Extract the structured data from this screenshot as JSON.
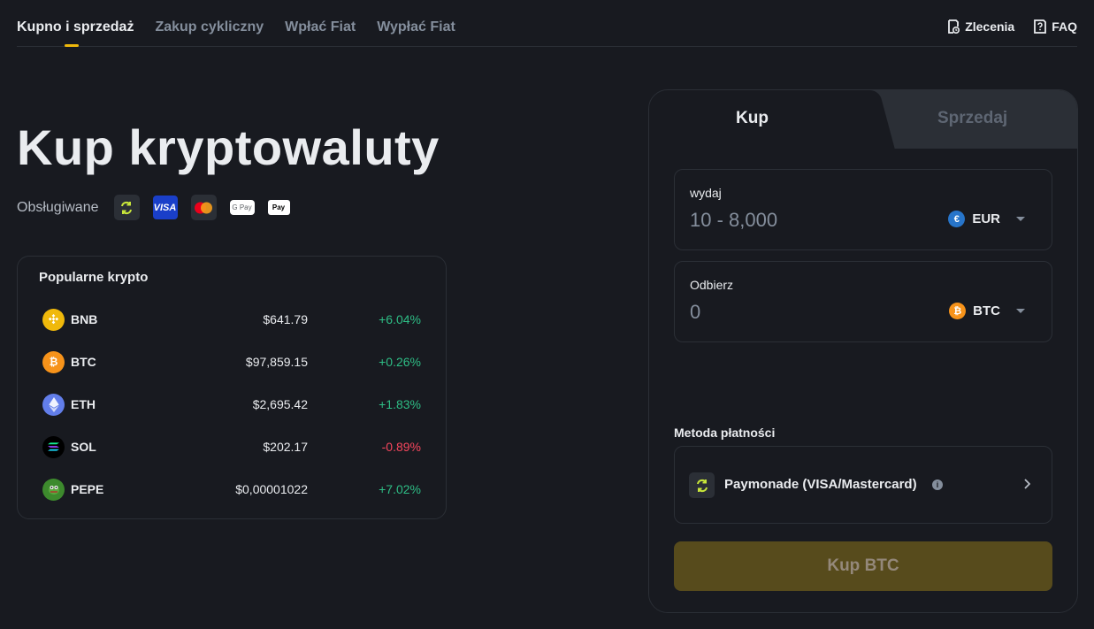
{
  "nav": {
    "tabs": [
      {
        "label": "Kupno i sprzedaż"
      },
      {
        "label": "Zakup cykliczny"
      },
      {
        "label": "Wpłać Fiat"
      },
      {
        "label": "Wypłać Fiat"
      }
    ],
    "orders_label": "Zlecenia",
    "faq_label": "FAQ"
  },
  "hero": {
    "title": "Kup kryptowaluty",
    "supported_label": "Obsługiwane",
    "visa_text": "VISA",
    "gpay_text": "G Pay",
    "apay_text": " Pay"
  },
  "popular": {
    "title": "Popularne krypto",
    "coins": [
      {
        "symbol": "BNB",
        "price": "$641.79",
        "change": "+6.04%",
        "color": "#f0b90b"
      },
      {
        "symbol": "BTC",
        "price": "$97,859.15",
        "change": "+0.26%",
        "color": "#f7931a"
      },
      {
        "symbol": "ETH",
        "price": "$2,695.42",
        "change": "+1.83%",
        "color": "#627eea"
      },
      {
        "symbol": "SOL",
        "price": "$202.17",
        "change": "-0.89%",
        "color": "#000000"
      },
      {
        "symbol": "PEPE",
        "price": "$0,00001022",
        "change": "+7.02%",
        "color": "#3d8a2d"
      }
    ]
  },
  "trade": {
    "buy_tab": "Kup",
    "sell_tab": "Sprzedaj",
    "spend": {
      "label": "wydaj",
      "placeholder": "10 - 8,000",
      "currency": "EUR",
      "currency_glyph": "€"
    },
    "receive": {
      "label": "Odbierz",
      "placeholder": "0",
      "currency": "BTC",
      "currency_glyph": "₿"
    },
    "payment_label": "Metoda płatności",
    "payment_method": "Paymonade (VISA/Mastercard)",
    "info_glyph": "i",
    "buy_button": "Kup BTC"
  },
  "colors": {
    "accent": "#f0b90b",
    "up": "#2ebd85",
    "down": "#f6465d",
    "eur": "#2775ca",
    "btc": "#f7931a"
  }
}
